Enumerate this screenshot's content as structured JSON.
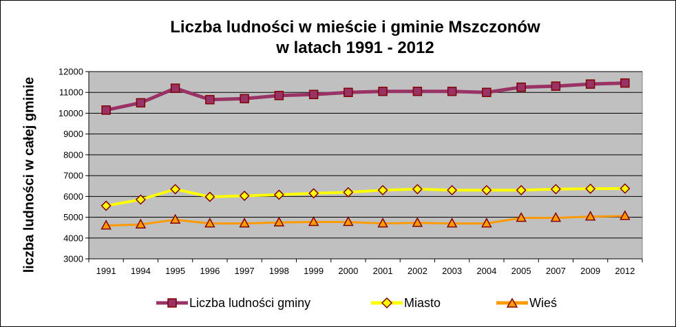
{
  "chart_data": {
    "type": "line",
    "title_line1": "Liczba ludności w mieście i gminie Mszczonów",
    "title_line2": "w latach 1991 - 2012",
    "xlabel": "",
    "ylabel": "liczba ludności w całej gminie",
    "categories": [
      "1991",
      "1994",
      "1995",
      "1996",
      "1997",
      "1998",
      "1999",
      "2000",
      "2001",
      "2002",
      "2003",
      "2004",
      "2005",
      "2007",
      "2009",
      "2012"
    ],
    "ylim": [
      3000,
      12000
    ],
    "yticks": [
      3000,
      4000,
      5000,
      6000,
      7000,
      8000,
      9000,
      10000,
      11000,
      12000
    ],
    "grid": true,
    "legend_position": "bottom",
    "series": [
      {
        "name": "Liczba ludności gminy",
        "color": "#993366",
        "marker": "square",
        "values": [
          10150,
          10500,
          11200,
          10650,
          10700,
          10850,
          10900,
          11000,
          11050,
          11050,
          11050,
          11000,
          11250,
          11300,
          11400,
          11450
        ]
      },
      {
        "name": "Miasto",
        "color": "#ffff00",
        "marker": "diamond",
        "values": [
          5550,
          5850,
          6350,
          5980,
          6030,
          6080,
          6150,
          6200,
          6300,
          6350,
          6300,
          6300,
          6300,
          6350,
          6370,
          6380
        ]
      },
      {
        "name": "Wieś",
        "color": "#ff9900",
        "marker": "triangle",
        "values": [
          4600,
          4650,
          4880,
          4700,
          4700,
          4750,
          4770,
          4770,
          4700,
          4730,
          4700,
          4700,
          4970,
          4970,
          5030,
          5060
        ]
      }
    ],
    "plot_background": "#c0c0c0"
  }
}
